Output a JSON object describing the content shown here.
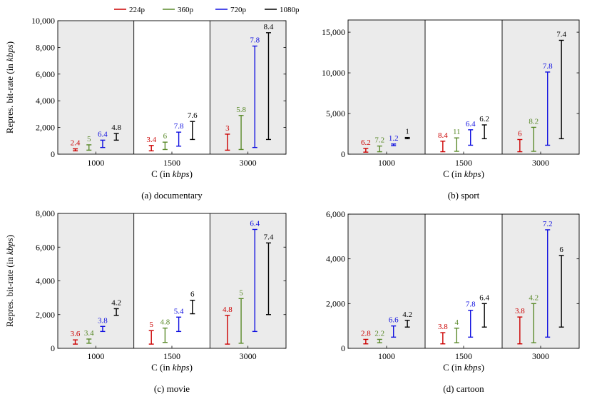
{
  "legend": {
    "entries": [
      {
        "name": "224p",
        "color": "#cc0000"
      },
      {
        "name": "360p",
        "color": "#5a8a2a"
      },
      {
        "name": "720p",
        "color": "#1010e0"
      },
      {
        "name": "1080p",
        "color": "#000000"
      }
    ]
  },
  "chart_data": [
    {
      "type": "errorbar",
      "title": "documentary",
      "caption": "(a) documentary",
      "xlabel": "C (in kbps)",
      "ylabel": "Repres. bit-rate (in kbps)",
      "categories": [
        "1000",
        "1500",
        "3000"
      ],
      "ylim": [
        0,
        10000
      ],
      "yticks": [
        0,
        2000,
        4000,
        6000,
        8000,
        10000
      ],
      "ytick_labels": [
        "0",
        "2,000",
        "4,000",
        "6,000",
        "8,000",
        "10,000"
      ],
      "series": [
        {
          "name": "224p",
          "ranges": [
            [
              250,
              400
            ],
            [
              250,
              650
            ],
            [
              300,
              1500
            ]
          ],
          "labels": [
            "2.4",
            "3.4",
            "3"
          ]
        },
        {
          "name": "360p",
          "ranges": [
            [
              300,
              700
            ],
            [
              350,
              900
            ],
            [
              350,
              2900
            ]
          ],
          "labels": [
            "5",
            "6",
            "5.8"
          ]
        },
        {
          "name": "720p",
          "ranges": [
            [
              500,
              1050
            ],
            [
              600,
              1650
            ],
            [
              500,
              8100
            ]
          ],
          "labels": [
            "6.4",
            "7.8",
            "7.8"
          ]
        },
        {
          "name": "1080p",
          "ranges": [
            [
              1050,
              1550
            ],
            [
              1100,
              2450
            ],
            [
              1100,
              9100
            ]
          ],
          "labels": [
            "4.8",
            "7.6",
            "8.4"
          ]
        }
      ]
    },
    {
      "type": "errorbar",
      "title": "sport",
      "caption": "(b) sport",
      "xlabel": "C (in kbps)",
      "ylabel": "",
      "categories": [
        "1000",
        "1500",
        "3000"
      ],
      "ylim": [
        0,
        16500
      ],
      "yticks": [
        0,
        5000,
        10000,
        15000
      ],
      "ytick_labels": [
        "0",
        "5,000",
        "10,000",
        "15,000"
      ],
      "series": [
        {
          "name": "224p",
          "ranges": [
            [
              250,
              700
            ],
            [
              300,
              1600
            ],
            [
              300,
              1800
            ]
          ],
          "labels": [
            "6.2",
            "8.4",
            "6"
          ]
        },
        {
          "name": "360p",
          "ranges": [
            [
              300,
              1000
            ],
            [
              350,
              2000
            ],
            [
              350,
              3300
            ]
          ],
          "labels": [
            "7.2",
            "11",
            "8.2"
          ]
        },
        {
          "name": "720p",
          "ranges": [
            [
              1050,
              1250
            ],
            [
              1100,
              3000
            ],
            [
              1100,
              10100
            ]
          ],
          "labels": [
            "1.2",
            "6.4",
            "7.8"
          ]
        },
        {
          "name": "1080p",
          "ranges": [
            [
              1900,
              2050
            ],
            [
              1900,
              3600
            ],
            [
              1900,
              14000
            ]
          ],
          "labels": [
            "1",
            "6.2",
            "7.4"
          ]
        }
      ]
    },
    {
      "type": "errorbar",
      "title": "movie",
      "caption": "(c) movie",
      "xlabel": "C (in kbps)",
      "ylabel": "Repres. bit-rate (in kbps)",
      "categories": [
        "1000",
        "1500",
        "3000"
      ],
      "ylim": [
        0,
        8000
      ],
      "yticks": [
        0,
        2000,
        4000,
        6000,
        8000
      ],
      "ytick_labels": [
        "0",
        "2,000",
        "4,000",
        "6,000",
        "8,000"
      ],
      "series": [
        {
          "name": "224p",
          "ranges": [
            [
              250,
              500
            ],
            [
              250,
              1050
            ],
            [
              250,
              1950
            ]
          ],
          "labels": [
            "3.6",
            "5",
            "4.8"
          ]
        },
        {
          "name": "360p",
          "ranges": [
            [
              300,
              550
            ],
            [
              350,
              1200
            ],
            [
              300,
              2950
            ]
          ],
          "labels": [
            "3.4",
            "4.8",
            "5"
          ]
        },
        {
          "name": "720p",
          "ranges": [
            [
              1000,
              1300
            ],
            [
              1000,
              1850
            ],
            [
              1000,
              7050
            ]
          ],
          "labels": [
            "3.8",
            "5.4",
            "6.4"
          ]
        },
        {
          "name": "1080p",
          "ranges": [
            [
              1950,
              2350
            ],
            [
              2050,
              2850
            ],
            [
              2000,
              6250
            ]
          ],
          "labels": [
            "4.2",
            "6",
            "7.4"
          ]
        }
      ]
    },
    {
      "type": "errorbar",
      "title": "cartoon",
      "caption": "(d) cartoon",
      "xlabel": "C (in kbps)",
      "ylabel": "",
      "categories": [
        "1000",
        "1500",
        "3000"
      ],
      "ylim": [
        0,
        6000
      ],
      "yticks": [
        0,
        2000,
        4000,
        6000
      ],
      "ytick_labels": [
        "0",
        "2,000",
        "4,000",
        "6,000"
      ],
      "series": [
        {
          "name": "224p",
          "ranges": [
            [
              200,
              400
            ],
            [
              200,
              700
            ],
            [
              200,
              1400
            ]
          ],
          "labels": [
            "2.8",
            "3.8",
            "3.8"
          ]
        },
        {
          "name": "360p",
          "ranges": [
            [
              250,
              400
            ],
            [
              250,
              900
            ],
            [
              250,
              2000
            ]
          ],
          "labels": [
            "2.2",
            "4",
            "4.2"
          ]
        },
        {
          "name": "720p",
          "ranges": [
            [
              500,
              1000
            ],
            [
              500,
              1700
            ],
            [
              500,
              5300
            ]
          ],
          "labels": [
            "6.6",
            "7.8",
            "7.2"
          ]
        },
        {
          "name": "1080p",
          "ranges": [
            [
              950,
              1250
            ],
            [
              950,
              2000
            ],
            [
              950,
              4150
            ]
          ],
          "labels": [
            "4.2",
            "6.4",
            "6"
          ]
        }
      ]
    }
  ]
}
